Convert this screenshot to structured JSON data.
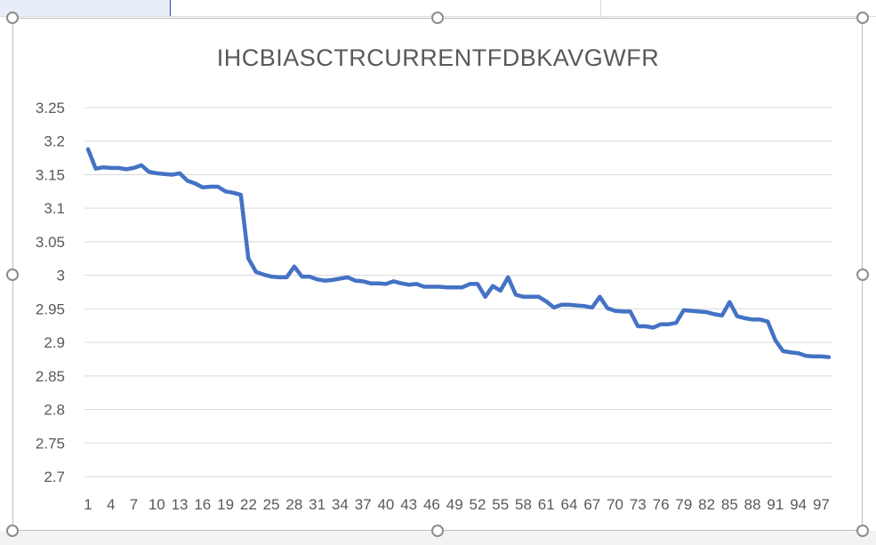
{
  "chart_data": {
    "type": "line",
    "title": "IHCBIASCTRCURRENTFDBKAVGWFR",
    "xlabel": "",
    "ylabel": "",
    "ylim": [
      2.7,
      3.25
    ],
    "yticks": [
      "3.25",
      "3.2",
      "3.15",
      "3.1",
      "3.05",
      "3",
      "2.95",
      "2.9",
      "2.85",
      "2.8",
      "2.75",
      "2.7"
    ],
    "xticks": [
      "1",
      "4",
      "7",
      "10",
      "13",
      "16",
      "19",
      "22",
      "25",
      "28",
      "31",
      "34",
      "37",
      "40",
      "43",
      "46",
      "49",
      "52",
      "55",
      "58",
      "61",
      "64",
      "67",
      "70",
      "73",
      "76",
      "79",
      "82",
      "85",
      "88",
      "91",
      "94",
      "97"
    ],
    "x": [
      1,
      2,
      3,
      4,
      5,
      6,
      7,
      8,
      9,
      10,
      11,
      12,
      13,
      14,
      15,
      16,
      17,
      18,
      19,
      20,
      21,
      22,
      23,
      24,
      25,
      26,
      27,
      28,
      29,
      30,
      31,
      32,
      33,
      34,
      35,
      36,
      37,
      38,
      39,
      40,
      41,
      42,
      43,
      44,
      45,
      46,
      47,
      48,
      49,
      50,
      51,
      52,
      53,
      54,
      55,
      56,
      57,
      58,
      59,
      60,
      61,
      62,
      63,
      64,
      65,
      66,
      67,
      68,
      69,
      70,
      71,
      72,
      73,
      74,
      75,
      76,
      77,
      78,
      79,
      80,
      81,
      82,
      83,
      84,
      85,
      86,
      87,
      88,
      89,
      90,
      91,
      92,
      93,
      94,
      95,
      96,
      97,
      98
    ],
    "series": [
      {
        "color": "#4472c4",
        "values": [
          3.188,
          3.159,
          3.161,
          3.16,
          3.16,
          3.158,
          3.16,
          3.164,
          3.154,
          3.152,
          3.151,
          3.15,
          3.152,
          3.141,
          3.137,
          3.131,
          3.132,
          3.132,
          3.125,
          3.123,
          3.12,
          3.025,
          3.005,
          3.001,
          2.998,
          2.997,
          2.997,
          3.013,
          2.998,
          2.998,
          2.994,
          2.992,
          2.993,
          2.995,
          2.997,
          2.992,
          2.991,
          2.988,
          2.988,
          2.987,
          2.991,
          2.988,
          2.986,
          2.987,
          2.983,
          2.983,
          2.983,
          2.982,
          2.982,
          2.982,
          2.987,
          2.987,
          2.968,
          2.984,
          2.977,
          2.997,
          2.971,
          2.968,
          2.968,
          2.968,
          2.961,
          2.952,
          2.956,
          2.956,
          2.955,
          2.954,
          2.952,
          2.968,
          2.951,
          2.947,
          2.946,
          2.946,
          2.924,
          2.924,
          2.922,
          2.927,
          2.927,
          2.929,
          2.948,
          2.947,
          2.946,
          2.945,
          2.942,
          2.94,
          2.96,
          2.939,
          2.936,
          2.934,
          2.934,
          2.931,
          2.903,
          2.887,
          2.885,
          2.884,
          2.88,
          2.879,
          2.879,
          2.878
        ]
      }
    ],
    "grid": true,
    "legend": "none"
  }
}
